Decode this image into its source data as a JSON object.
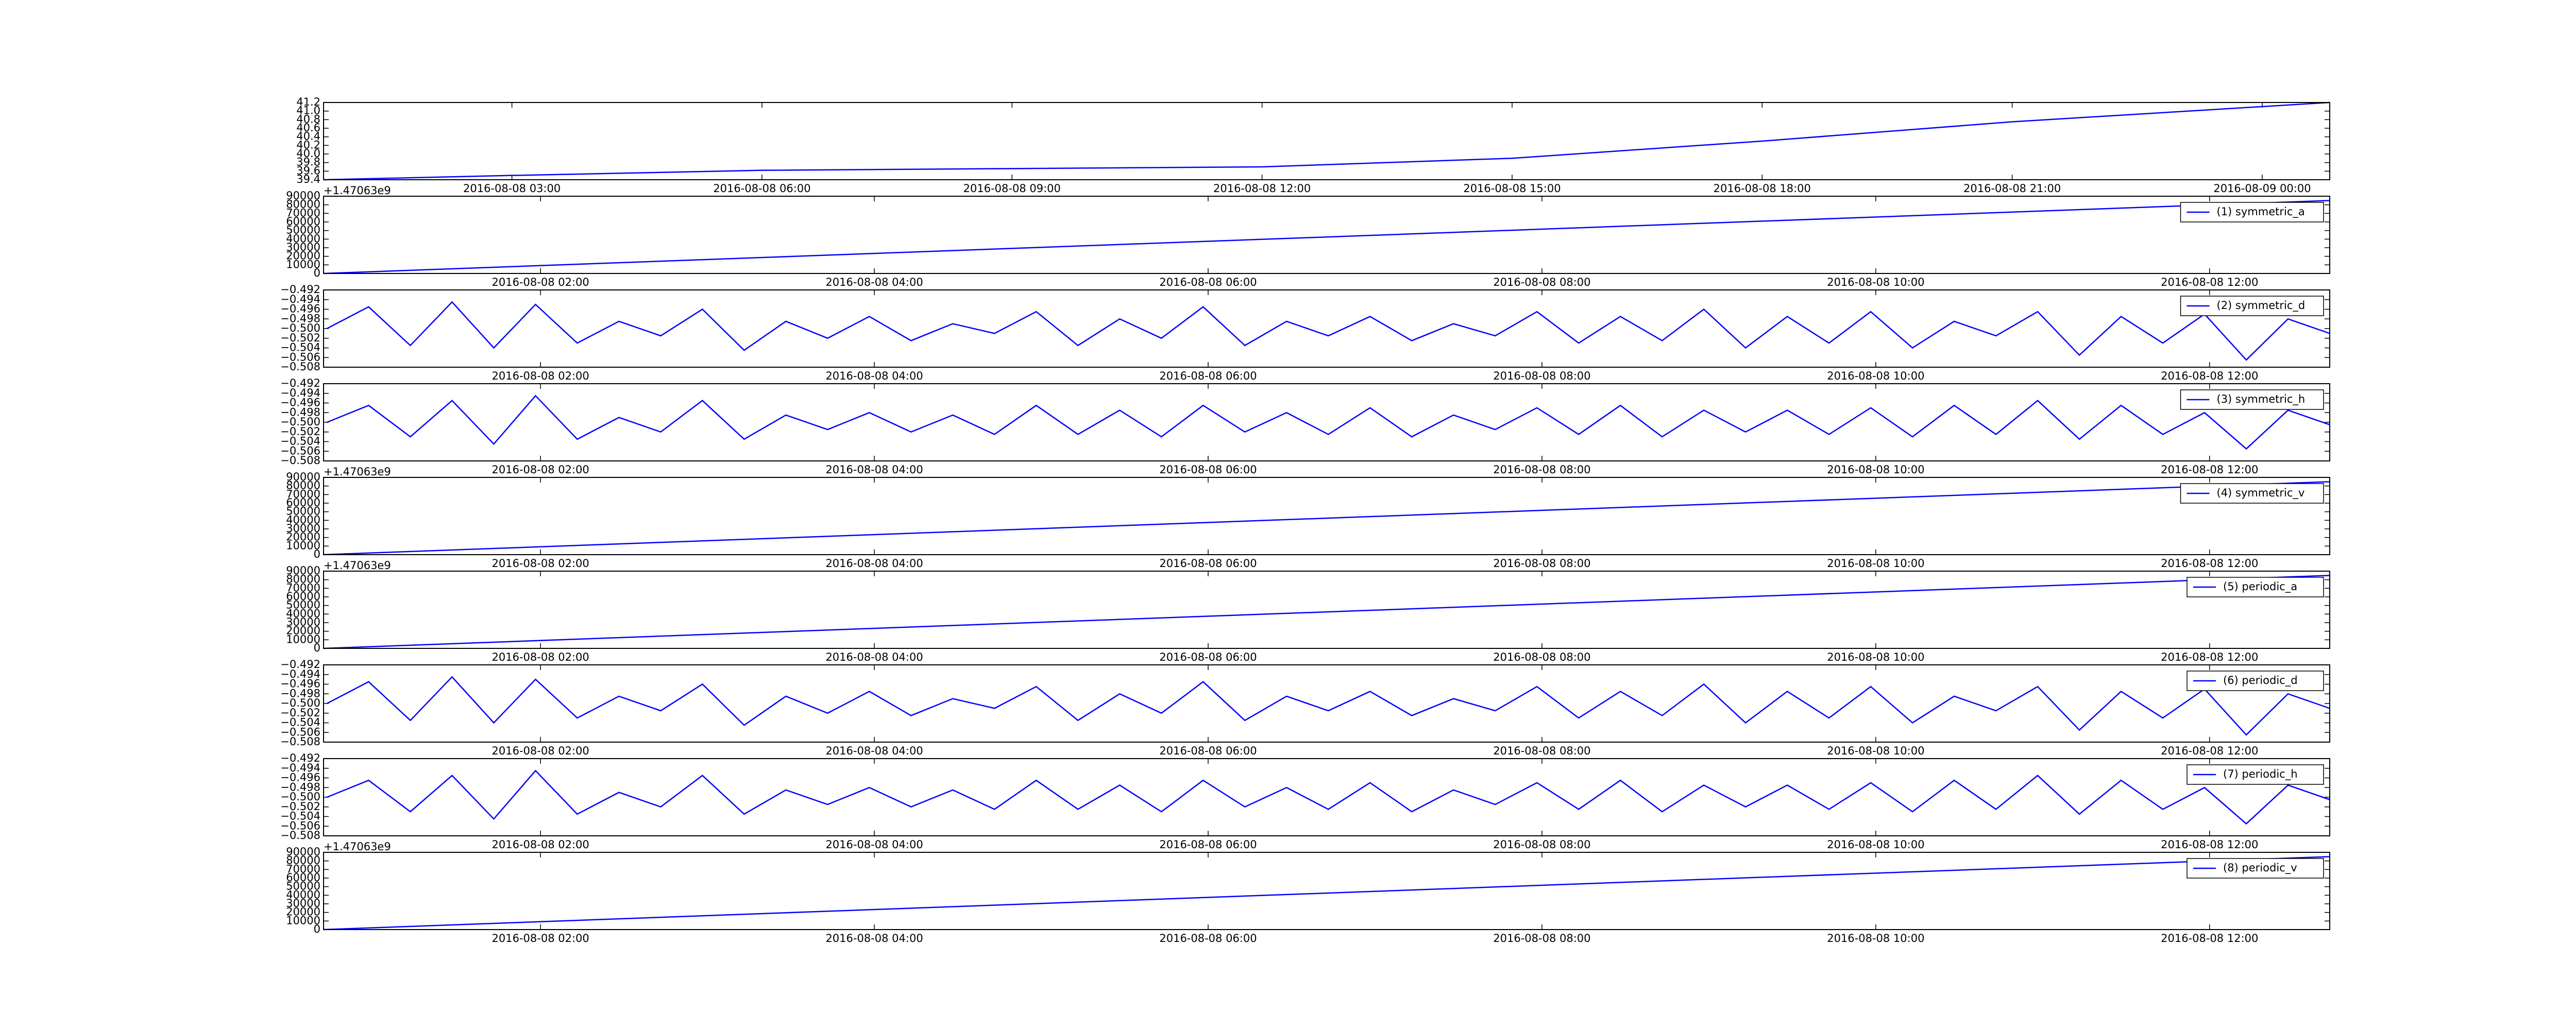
{
  "chart_data": [
    {
      "type": "line",
      "x": [
        0.74,
        3,
        6,
        9,
        12,
        15,
        18,
        21,
        24.81
      ],
      "series": [
        {
          "color": "#0000ff",
          "values": [
            39.4,
            39.5,
            39.62,
            39.66,
            39.7,
            39.9,
            40.3,
            40.75,
            41.2
          ]
        }
      ],
      "xlim": [
        0.74,
        24.81
      ],
      "xticks": [
        {
          "value": 3,
          "label": "2016-08-08 03:00"
        },
        {
          "value": 6,
          "label": "2016-08-08 06:00"
        },
        {
          "value": 9,
          "label": "2016-08-08 09:00"
        },
        {
          "value": 12,
          "label": "2016-08-08 12:00"
        },
        {
          "value": 15,
          "label": "2016-08-08 15:00"
        },
        {
          "value": 18,
          "label": "2016-08-08 18:00"
        },
        {
          "value": 21,
          "label": "2016-08-08 21:00"
        },
        {
          "value": 24,
          "label": "2016-08-09 00:00"
        }
      ],
      "ylim": [
        39.4,
        41.2
      ],
      "yticks": [
        39.4,
        39.6,
        39.8,
        {
          "value": 40,
          "label": "40.0"
        },
        40.2,
        40.4,
        40.6,
        40.8,
        {
          "value": 41,
          "label": "41.0"
        },
        41.2
      ]
    },
    {
      "type": "line",
      "offset_label": "+1.47063e9",
      "x": [
        0.7,
        12.72
      ],
      "series": [
        {
          "name": "(1) symmetric_a",
          "color": "#0000ff",
          "values": [
            0,
            85000
          ]
        }
      ],
      "xlim": [
        0.7,
        12.72
      ],
      "xticks": [
        {
          "value": 2,
          "label": "2016-08-08 02:00"
        },
        {
          "value": 4,
          "label": "2016-08-08 04:00"
        },
        {
          "value": 6,
          "label": "2016-08-08 06:00"
        },
        {
          "value": 8,
          "label": "2016-08-08 08:00"
        },
        {
          "value": 10,
          "label": "2016-08-08 10:00"
        },
        {
          "value": 12,
          "label": "2016-08-08 12:00"
        }
      ],
      "ylim": [
        0,
        90000
      ],
      "yticks": [
        0,
        10000,
        20000,
        30000,
        40000,
        50000,
        60000,
        70000,
        80000,
        90000
      ]
    },
    {
      "type": "line",
      "x": [
        0.72,
        0.97,
        1.22,
        1.47,
        1.72,
        1.97,
        2.22,
        2.47,
        2.72,
        2.97,
        3.22,
        3.47,
        3.72,
        3.97,
        4.22,
        4.47,
        4.72,
        4.97,
        5.22,
        5.47,
        5.72,
        5.97,
        6.22,
        6.47,
        6.72,
        6.97,
        7.22,
        7.47,
        7.72,
        7.97,
        8.22,
        8.47,
        8.72,
        8.97,
        9.22,
        9.47,
        9.72,
        9.97,
        10.22,
        10.47,
        10.72,
        10.97,
        11.22,
        11.47,
        11.72,
        11.97,
        12.22,
        12.47,
        12.72
      ],
      "series": [
        {
          "name": "(2) symmetric_d",
          "color": "#0000ff",
          "values": [
            -0.5,
            -0.4955,
            -0.5035,
            -0.4945,
            -0.504,
            -0.495,
            -0.503,
            -0.4985,
            -0.5015,
            -0.496,
            -0.5045,
            -0.4985,
            -0.502,
            -0.4975,
            -0.5025,
            -0.499,
            -0.501,
            -0.4965,
            -0.5035,
            -0.498,
            -0.502,
            -0.4955,
            -0.5035,
            -0.4985,
            -0.5015,
            -0.4975,
            -0.5025,
            -0.499,
            -0.5015,
            -0.4965,
            -0.503,
            -0.4975,
            -0.5025,
            -0.496,
            -0.504,
            -0.4975,
            -0.503,
            -0.4965,
            -0.504,
            -0.4985,
            -0.5015,
            -0.4965,
            -0.5055,
            -0.4975,
            -0.503,
            -0.497,
            -0.5065,
            -0.498,
            -0.501
          ]
        }
      ],
      "xlim": [
        0.7,
        12.72
      ],
      "xticks": [
        {
          "value": 2,
          "label": "2016-08-08 02:00"
        },
        {
          "value": 4,
          "label": "2016-08-08 04:00"
        },
        {
          "value": 6,
          "label": "2016-08-08 06:00"
        },
        {
          "value": 8,
          "label": "2016-08-08 08:00"
        },
        {
          "value": 10,
          "label": "2016-08-08 10:00"
        },
        {
          "value": 12,
          "label": "2016-08-08 12:00"
        }
      ],
      "ylim": [
        -0.508,
        -0.492
      ],
      "yticks": [
        {
          "value": -0.508,
          "label": "−0.508"
        },
        {
          "value": -0.506,
          "label": "−0.506"
        },
        {
          "value": -0.504,
          "label": "−0.504"
        },
        {
          "value": -0.502,
          "label": "−0.502"
        },
        {
          "value": -0.5,
          "label": "−0.500"
        },
        {
          "value": -0.498,
          "label": "−0.498"
        },
        {
          "value": -0.496,
          "label": "−0.496"
        },
        {
          "value": -0.494,
          "label": "−0.494"
        },
        {
          "value": -0.492,
          "label": "−0.492"
        }
      ]
    },
    {
      "type": "line",
      "x": [
        0.72,
        0.97,
        1.22,
        1.47,
        1.72,
        1.97,
        2.22,
        2.47,
        2.72,
        2.97,
        3.22,
        3.47,
        3.72,
        3.97,
        4.22,
        4.47,
        4.72,
        4.97,
        5.22,
        5.47,
        5.72,
        5.97,
        6.22,
        6.47,
        6.72,
        6.97,
        7.22,
        7.47,
        7.72,
        7.97,
        8.22,
        8.47,
        8.72,
        8.97,
        9.22,
        9.47,
        9.72,
        9.97,
        10.22,
        10.47,
        10.72,
        10.97,
        11.22,
        11.47,
        11.72,
        11.97,
        12.22,
        12.47,
        12.72
      ],
      "series": [
        {
          "name": "(3) symmetric_h",
          "color": "#0000ff",
          "values": [
            -0.5,
            -0.4965,
            -0.503,
            -0.4955,
            -0.5045,
            -0.4945,
            -0.5035,
            -0.499,
            -0.502,
            -0.4955,
            -0.5035,
            -0.4985,
            -0.5015,
            -0.498,
            -0.502,
            -0.4985,
            -0.5025,
            -0.4965,
            -0.5025,
            -0.4975,
            -0.503,
            -0.4965,
            -0.502,
            -0.498,
            -0.5025,
            -0.497,
            -0.503,
            -0.4985,
            -0.5015,
            -0.497,
            -0.5025,
            -0.4965,
            -0.503,
            -0.4975,
            -0.502,
            -0.4975,
            -0.5025,
            -0.497,
            -0.503,
            -0.4965,
            -0.5025,
            -0.4955,
            -0.5035,
            -0.4965,
            -0.5025,
            -0.498,
            -0.5055,
            -0.4975,
            -0.5005
          ]
        }
      ],
      "xlim": [
        0.7,
        12.72
      ],
      "xticks": [
        {
          "value": 2,
          "label": "2016-08-08 02:00"
        },
        {
          "value": 4,
          "label": "2016-08-08 04:00"
        },
        {
          "value": 6,
          "label": "2016-08-08 06:00"
        },
        {
          "value": 8,
          "label": "2016-08-08 08:00"
        },
        {
          "value": 10,
          "label": "2016-08-08 10:00"
        },
        {
          "value": 12,
          "label": "2016-08-08 12:00"
        }
      ],
      "ylim": [
        -0.508,
        -0.492
      ],
      "yticks": [
        {
          "value": -0.508,
          "label": "−0.508"
        },
        {
          "value": -0.506,
          "label": "−0.506"
        },
        {
          "value": -0.504,
          "label": "−0.504"
        },
        {
          "value": -0.502,
          "label": "−0.502"
        },
        {
          "value": -0.5,
          "label": "−0.500"
        },
        {
          "value": -0.498,
          "label": "−0.498"
        },
        {
          "value": -0.496,
          "label": "−0.496"
        },
        {
          "value": -0.494,
          "label": "−0.494"
        },
        {
          "value": -0.492,
          "label": "−0.492"
        }
      ]
    },
    {
      "type": "line",
      "offset_label": "+1.47063e9",
      "x": [
        0.7,
        12.72
      ],
      "series": [
        {
          "name": "(4) symmetric_v",
          "color": "#0000ff",
          "values": [
            0,
            85000
          ]
        }
      ],
      "xlim": [
        0.7,
        12.72
      ],
      "xticks": [
        {
          "value": 2,
          "label": "2016-08-08 02:00"
        },
        {
          "value": 4,
          "label": "2016-08-08 04:00"
        },
        {
          "value": 6,
          "label": "2016-08-08 06:00"
        },
        {
          "value": 8,
          "label": "2016-08-08 08:00"
        },
        {
          "value": 10,
          "label": "2016-08-08 10:00"
        },
        {
          "value": 12,
          "label": "2016-08-08 12:00"
        }
      ],
      "ylim": [
        0,
        90000
      ],
      "yticks": [
        0,
        10000,
        20000,
        30000,
        40000,
        50000,
        60000,
        70000,
        80000,
        90000
      ]
    },
    {
      "type": "line",
      "offset_label": "+1.47063e9",
      "x": [
        0.7,
        12.72
      ],
      "series": [
        {
          "name": "(5) periodic_a",
          "color": "#0000ff",
          "values": [
            0,
            85000
          ]
        }
      ],
      "xlim": [
        0.7,
        12.72
      ],
      "xticks": [
        {
          "value": 2,
          "label": "2016-08-08 02:00"
        },
        {
          "value": 4,
          "label": "2016-08-08 04:00"
        },
        {
          "value": 6,
          "label": "2016-08-08 06:00"
        },
        {
          "value": 8,
          "label": "2016-08-08 08:00"
        },
        {
          "value": 10,
          "label": "2016-08-08 10:00"
        },
        {
          "value": 12,
          "label": "2016-08-08 12:00"
        }
      ],
      "ylim": [
        0,
        90000
      ],
      "yticks": [
        0,
        10000,
        20000,
        30000,
        40000,
        50000,
        60000,
        70000,
        80000,
        90000
      ]
    },
    {
      "type": "line",
      "x": [
        0.72,
        0.97,
        1.22,
        1.47,
        1.72,
        1.97,
        2.22,
        2.47,
        2.72,
        2.97,
        3.22,
        3.47,
        3.72,
        3.97,
        4.22,
        4.47,
        4.72,
        4.97,
        5.22,
        5.47,
        5.72,
        5.97,
        6.22,
        6.47,
        6.72,
        6.97,
        7.22,
        7.47,
        7.72,
        7.97,
        8.22,
        8.47,
        8.72,
        8.97,
        9.22,
        9.47,
        9.72,
        9.97,
        10.22,
        10.47,
        10.72,
        10.97,
        11.22,
        11.47,
        11.72,
        11.97,
        12.22,
        12.47,
        12.72
      ],
      "series": [
        {
          "name": "(6) periodic_d",
          "color": "#0000ff",
          "values": [
            -0.5,
            -0.4955,
            -0.5035,
            -0.4945,
            -0.504,
            -0.495,
            -0.503,
            -0.4985,
            -0.5015,
            -0.496,
            -0.5045,
            -0.4985,
            -0.502,
            -0.4975,
            -0.5025,
            -0.499,
            -0.501,
            -0.4965,
            -0.5035,
            -0.498,
            -0.502,
            -0.4955,
            -0.5035,
            -0.4985,
            -0.5015,
            -0.4975,
            -0.5025,
            -0.499,
            -0.5015,
            -0.4965,
            -0.503,
            -0.4975,
            -0.5025,
            -0.496,
            -0.504,
            -0.4975,
            -0.503,
            -0.4965,
            -0.504,
            -0.4985,
            -0.5015,
            -0.4965,
            -0.5055,
            -0.4975,
            -0.503,
            -0.497,
            -0.5065,
            -0.498,
            -0.501
          ]
        }
      ],
      "xlim": [
        0.7,
        12.72
      ],
      "xticks": [
        {
          "value": 2,
          "label": "2016-08-08 02:00"
        },
        {
          "value": 4,
          "label": "2016-08-08 04:00"
        },
        {
          "value": 6,
          "label": "2016-08-08 06:00"
        },
        {
          "value": 8,
          "label": "2016-08-08 08:00"
        },
        {
          "value": 10,
          "label": "2016-08-08 10:00"
        },
        {
          "value": 12,
          "label": "2016-08-08 12:00"
        }
      ],
      "ylim": [
        -0.508,
        -0.492
      ],
      "yticks": [
        {
          "value": -0.508,
          "label": "−0.508"
        },
        {
          "value": -0.506,
          "label": "−0.506"
        },
        {
          "value": -0.504,
          "label": "−0.504"
        },
        {
          "value": -0.502,
          "label": "−0.502"
        },
        {
          "value": -0.5,
          "label": "−0.500"
        },
        {
          "value": -0.498,
          "label": "−0.498"
        },
        {
          "value": -0.496,
          "label": "−0.496"
        },
        {
          "value": -0.494,
          "label": "−0.494"
        },
        {
          "value": -0.492,
          "label": "−0.492"
        }
      ]
    },
    {
      "type": "line",
      "x": [
        0.72,
        0.97,
        1.22,
        1.47,
        1.72,
        1.97,
        2.22,
        2.47,
        2.72,
        2.97,
        3.22,
        3.47,
        3.72,
        3.97,
        4.22,
        4.47,
        4.72,
        4.97,
        5.22,
        5.47,
        5.72,
        5.97,
        6.22,
        6.47,
        6.72,
        6.97,
        7.22,
        7.47,
        7.72,
        7.97,
        8.22,
        8.47,
        8.72,
        8.97,
        9.22,
        9.47,
        9.72,
        9.97,
        10.22,
        10.47,
        10.72,
        10.97,
        11.22,
        11.47,
        11.72,
        11.97,
        12.22,
        12.47,
        12.72
      ],
      "series": [
        {
          "name": "(7) periodic_h",
          "color": "#0000ff",
          "values": [
            -0.5,
            -0.4965,
            -0.503,
            -0.4955,
            -0.5045,
            -0.4945,
            -0.5035,
            -0.499,
            -0.502,
            -0.4955,
            -0.5035,
            -0.4985,
            -0.5015,
            -0.498,
            -0.502,
            -0.4985,
            -0.5025,
            -0.4965,
            -0.5025,
            -0.4975,
            -0.503,
            -0.4965,
            -0.502,
            -0.498,
            -0.5025,
            -0.497,
            -0.503,
            -0.4985,
            -0.5015,
            -0.497,
            -0.5025,
            -0.4965,
            -0.503,
            -0.4975,
            -0.502,
            -0.4975,
            -0.5025,
            -0.497,
            -0.503,
            -0.4965,
            -0.5025,
            -0.4955,
            -0.5035,
            -0.4965,
            -0.5025,
            -0.498,
            -0.5055,
            -0.4975,
            -0.5005
          ]
        }
      ],
      "xlim": [
        0.7,
        12.72
      ],
      "xticks": [
        {
          "value": 2,
          "label": "2016-08-08 02:00"
        },
        {
          "value": 4,
          "label": "2016-08-08 04:00"
        },
        {
          "value": 6,
          "label": "2016-08-08 06:00"
        },
        {
          "value": 8,
          "label": "2016-08-08 08:00"
        },
        {
          "value": 10,
          "label": "2016-08-08 10:00"
        },
        {
          "value": 12,
          "label": "2016-08-08 12:00"
        }
      ],
      "ylim": [
        -0.508,
        -0.492
      ],
      "yticks": [
        {
          "value": -0.508,
          "label": "−0.508"
        },
        {
          "value": -0.506,
          "label": "−0.506"
        },
        {
          "value": -0.504,
          "label": "−0.504"
        },
        {
          "value": -0.502,
          "label": "−0.502"
        },
        {
          "value": -0.5,
          "label": "−0.500"
        },
        {
          "value": -0.498,
          "label": "−0.498"
        },
        {
          "value": -0.496,
          "label": "−0.496"
        },
        {
          "value": -0.494,
          "label": "−0.494"
        },
        {
          "value": -0.492,
          "label": "−0.492"
        }
      ]
    },
    {
      "type": "line",
      "offset_label": "+1.47063e9",
      "x": [
        0.7,
        12.72
      ],
      "series": [
        {
          "name": "(8) periodic_v",
          "color": "#0000ff",
          "values": [
            0,
            85000
          ]
        }
      ],
      "xlim": [
        0.7,
        12.72
      ],
      "xticks": [
        {
          "value": 2,
          "label": "2016-08-08 02:00"
        },
        {
          "value": 4,
          "label": "2016-08-08 04:00"
        },
        {
          "value": 6,
          "label": "2016-08-08 06:00"
        },
        {
          "value": 8,
          "label": "2016-08-08 08:00"
        },
        {
          "value": 10,
          "label": "2016-08-08 10:00"
        },
        {
          "value": 12,
          "label": "2016-08-08 12:00"
        }
      ],
      "ylim": [
        0,
        90000
      ],
      "yticks": [
        0,
        10000,
        20000,
        30000,
        40000,
        50000,
        60000,
        70000,
        80000,
        90000
      ]
    }
  ]
}
